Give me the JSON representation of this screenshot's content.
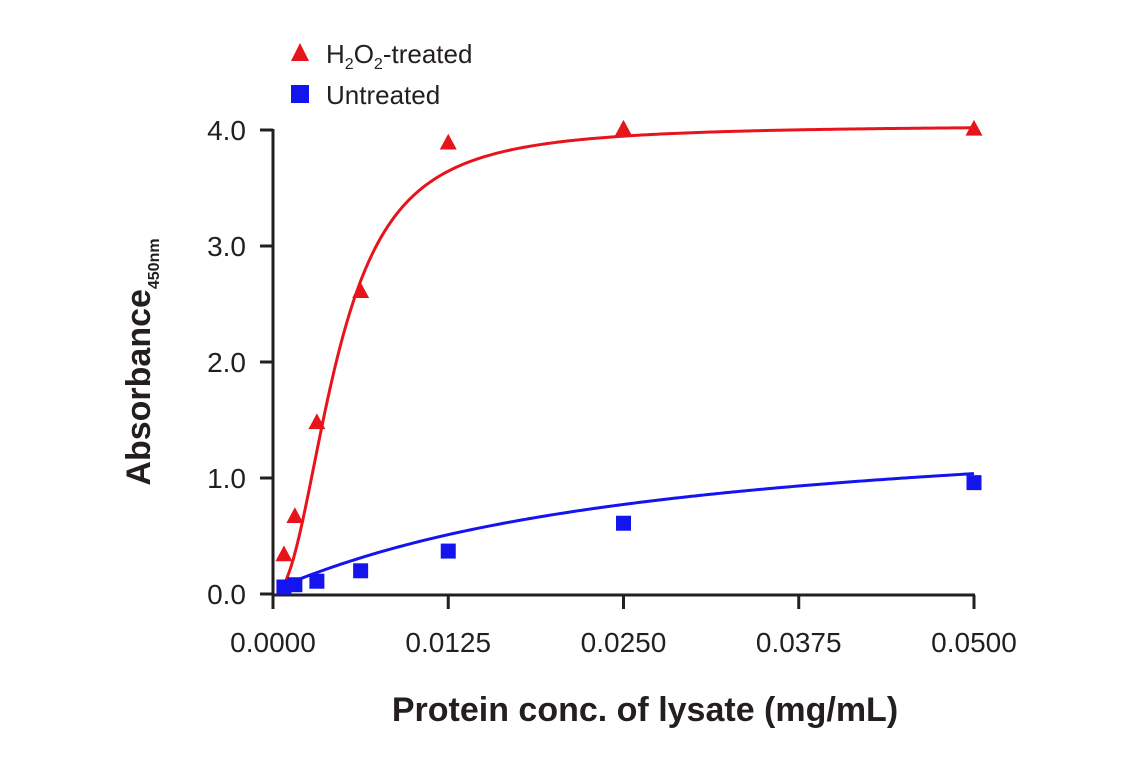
{
  "chart_data": {
    "type": "scatter",
    "title": "",
    "xlabel": "Protein conc. of lysate (mg/mL)",
    "ylabel": "Absorbance",
    "ylabel_subscript": "450nm",
    "xlim": [
      0,
      0.05
    ],
    "ylim": [
      0,
      4.0
    ],
    "xticks": [
      0.0,
      0.0125,
      0.025,
      0.0375,
      0.05
    ],
    "xtick_labels": [
      "0.0000",
      "0.0125",
      "0.0250",
      "0.0375",
      "0.0500"
    ],
    "yticks": [
      0,
      1,
      2,
      3,
      4
    ],
    "ytick_labels": [
      "0.0",
      "1.0",
      "2.0",
      "3.0",
      "4.0"
    ],
    "grid": false,
    "legend_position": "top-left",
    "series": [
      {
        "name": "H2O2-treated",
        "legend_main": "H",
        "legend_sub1": "2",
        "legend_mid": "O",
        "legend_sub2": "2",
        "legend_tail": "-treated",
        "marker": "triangle",
        "color": "#e8141b",
        "x": [
          0.00078,
          0.00156,
          0.00313,
          0.00625,
          0.0125,
          0.025,
          0.05
        ],
        "y": [
          0.34,
          0.67,
          1.48,
          2.61,
          3.89,
          4.01,
          4.01
        ],
        "curve": {
          "model": "logistic",
          "top": 4.04,
          "bottom": 0.0,
          "ec50": 0.00455,
          "hill": 2.2
        }
      },
      {
        "name": "Untreated",
        "marker": "square",
        "color": "#1414f0",
        "x": [
          0.00078,
          0.00156,
          0.00313,
          0.00625,
          0.0125,
          0.025,
          0.05
        ],
        "y": [
          0.06,
          0.08,
          0.11,
          0.2,
          0.37,
          0.61,
          0.96
        ],
        "curve": {
          "model": "logistic",
          "top": 1.55,
          "bottom": 0.04,
          "ec50": 0.0265,
          "hill": 1.05
        }
      }
    ]
  }
}
